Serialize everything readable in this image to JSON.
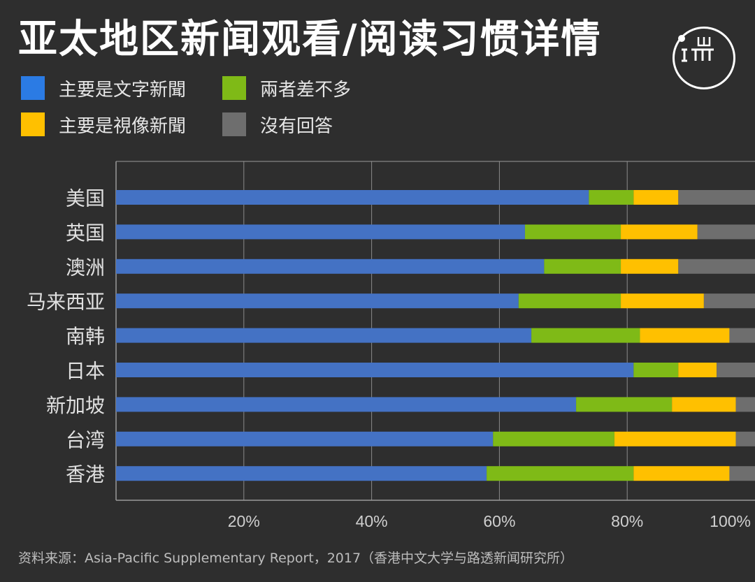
{
  "title": "亚太地区新闻观看/阅读习惯详情",
  "logo": {
    "icon": "initium-logo-icon"
  },
  "source": "资料来源：Asia-Pacific Supplementary Report，2017（香港中文大学与路透新闻研究所）",
  "colors": {
    "background": "#2e2e2e",
    "text": "#f2f2f2",
    "grid": "#8a8a8a",
    "axis": "#9a9a9a",
    "tick_label": "#cfcfcf",
    "category_label": "#e0e0e0"
  },
  "chart_data": {
    "type": "bar",
    "orientation": "horizontal",
    "stacked": true,
    "categories": [
      "美国",
      "英国",
      "澳洲",
      "马来西亚",
      "南韩",
      "日本",
      "新加坡",
      "台湾",
      "香港"
    ],
    "series": [
      {
        "name": "主要是文字新聞",
        "color": "#4472c4",
        "values": [
          74,
          64,
          67,
          63,
          65,
          81,
          72,
          59,
          58
        ]
      },
      {
        "name": "兩者差不多",
        "color": "#7fba17",
        "values": [
          7,
          15,
          12,
          16,
          17,
          7,
          15,
          19,
          23
        ]
      },
      {
        "name": "主要是視像新聞",
        "color": "#ffc000",
        "values": [
          7,
          12,
          9,
          13,
          14,
          6,
          10,
          19,
          15
        ]
      },
      {
        "name": "沒有回答",
        "color": "#6e6e6e",
        "values": [
          12,
          9,
          12,
          8,
          4,
          6,
          3,
          3,
          4
        ]
      }
    ],
    "xlim": [
      0,
      100
    ],
    "x_ticks": [
      20,
      40,
      60,
      80,
      100
    ],
    "x_tick_labels": [
      "20%",
      "40%",
      "60%",
      "80%",
      "100%"
    ],
    "grid": true,
    "legend_position": "top-left"
  }
}
